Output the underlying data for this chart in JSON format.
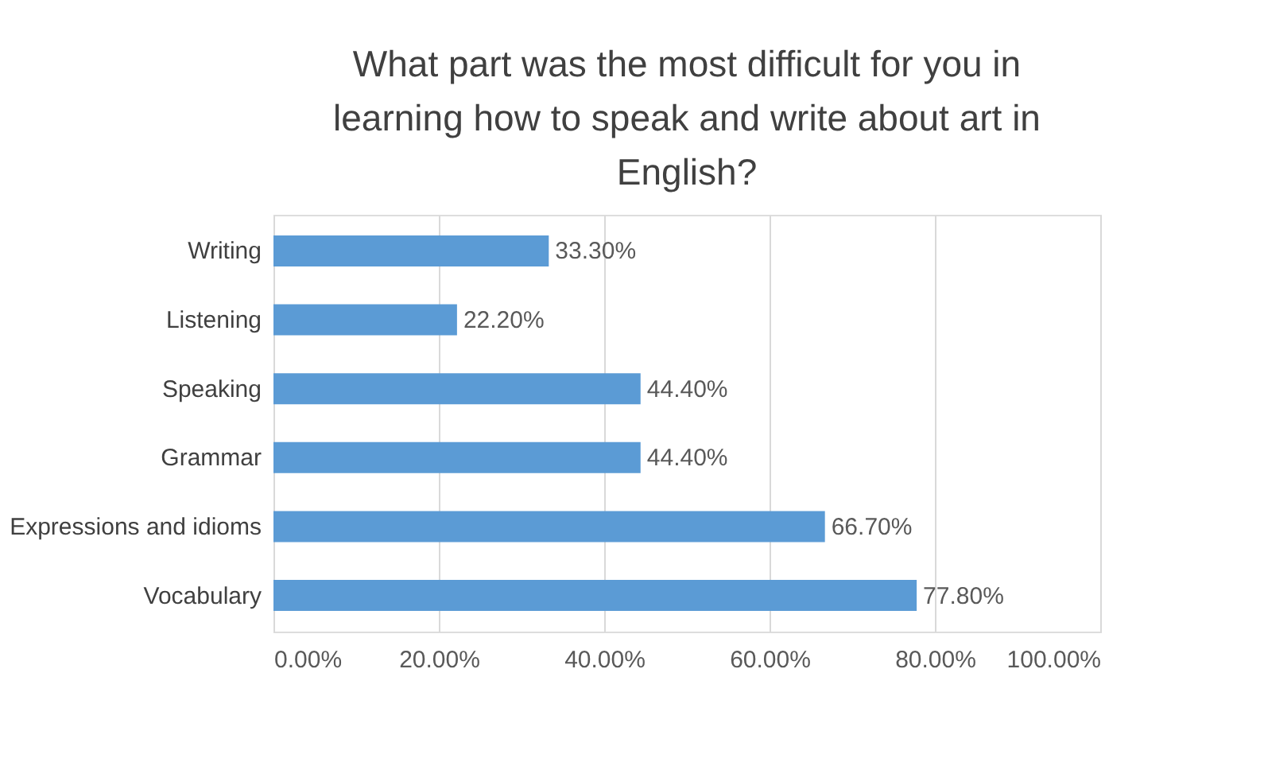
{
  "chart_data": {
    "type": "bar",
    "orientation": "horizontal",
    "title": "What part was the most difficult for you in learning how to speak and write about art in English?",
    "categories": [
      "Writing",
      "Listening",
      "Speaking",
      "Grammar",
      "Expressions and idioms",
      "Vocabulary"
    ],
    "values": [
      33.3,
      22.2,
      44.4,
      44.4,
      66.7,
      77.8
    ],
    "value_labels": [
      "33.30%",
      "22.20%",
      "44.40%",
      "44.40%",
      "66.70%",
      "77.80%"
    ],
    "color": "#5b9bd5",
    "xlim": [
      0,
      100
    ],
    "xticks": [
      {
        "value": 0,
        "label": "0.00%"
      },
      {
        "value": 20,
        "label": "20.00%"
      },
      {
        "value": 40,
        "label": "40.00%"
      },
      {
        "value": 60,
        "label": "60.00%"
      },
      {
        "value": 80,
        "label": "80.00%"
      },
      {
        "value": 100,
        "label": "100.00%"
      }
    ],
    "grid": "x"
  }
}
